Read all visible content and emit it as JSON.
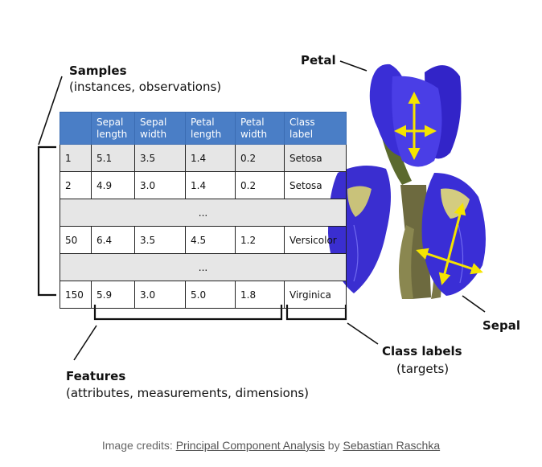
{
  "labels": {
    "samples_title": "Samples",
    "samples_sub": "(instances, observations)",
    "features_title": "Features",
    "features_sub": "(attributes, measurements, dimensions)",
    "class_labels_title": "Class labels",
    "class_labels_sub": "(targets)",
    "petal": "Petal",
    "sepal": "Sepal"
  },
  "table": {
    "headers": [
      "",
      "Sepal length",
      "Sepal width",
      "Petal length",
      "Petal width",
      "Class label"
    ],
    "rows": [
      {
        "type": "data",
        "cells": [
          "1",
          "5.1",
          "3.5",
          "1.4",
          "0.2",
          "Setosa"
        ]
      },
      {
        "type": "data",
        "cells": [
          "2",
          "4.9",
          "3.0",
          "1.4",
          "0.2",
          "Setosa"
        ]
      },
      {
        "type": "ellipsis",
        "text": "..."
      },
      {
        "type": "data",
        "cells": [
          "50",
          "6.4",
          "3.5",
          "4.5",
          "1.2",
          "Versicolor"
        ]
      },
      {
        "type": "ellipsis",
        "text": "..."
      },
      {
        "type": "data",
        "cells": [
          "150",
          "5.9",
          "3.0",
          "5.0",
          "1.8",
          "Virginica"
        ]
      }
    ]
  },
  "credits": {
    "prefix": "Image credits: ",
    "work": "Principal Component Analysis",
    "by": " by ",
    "author": "Sebastian Raschka"
  },
  "colors": {
    "header_bg": "#4a7ec6",
    "shaded_row": "#e6e6e6",
    "petal_blue": "#3b2fd6",
    "arrow_yellow": "#f5e400"
  }
}
